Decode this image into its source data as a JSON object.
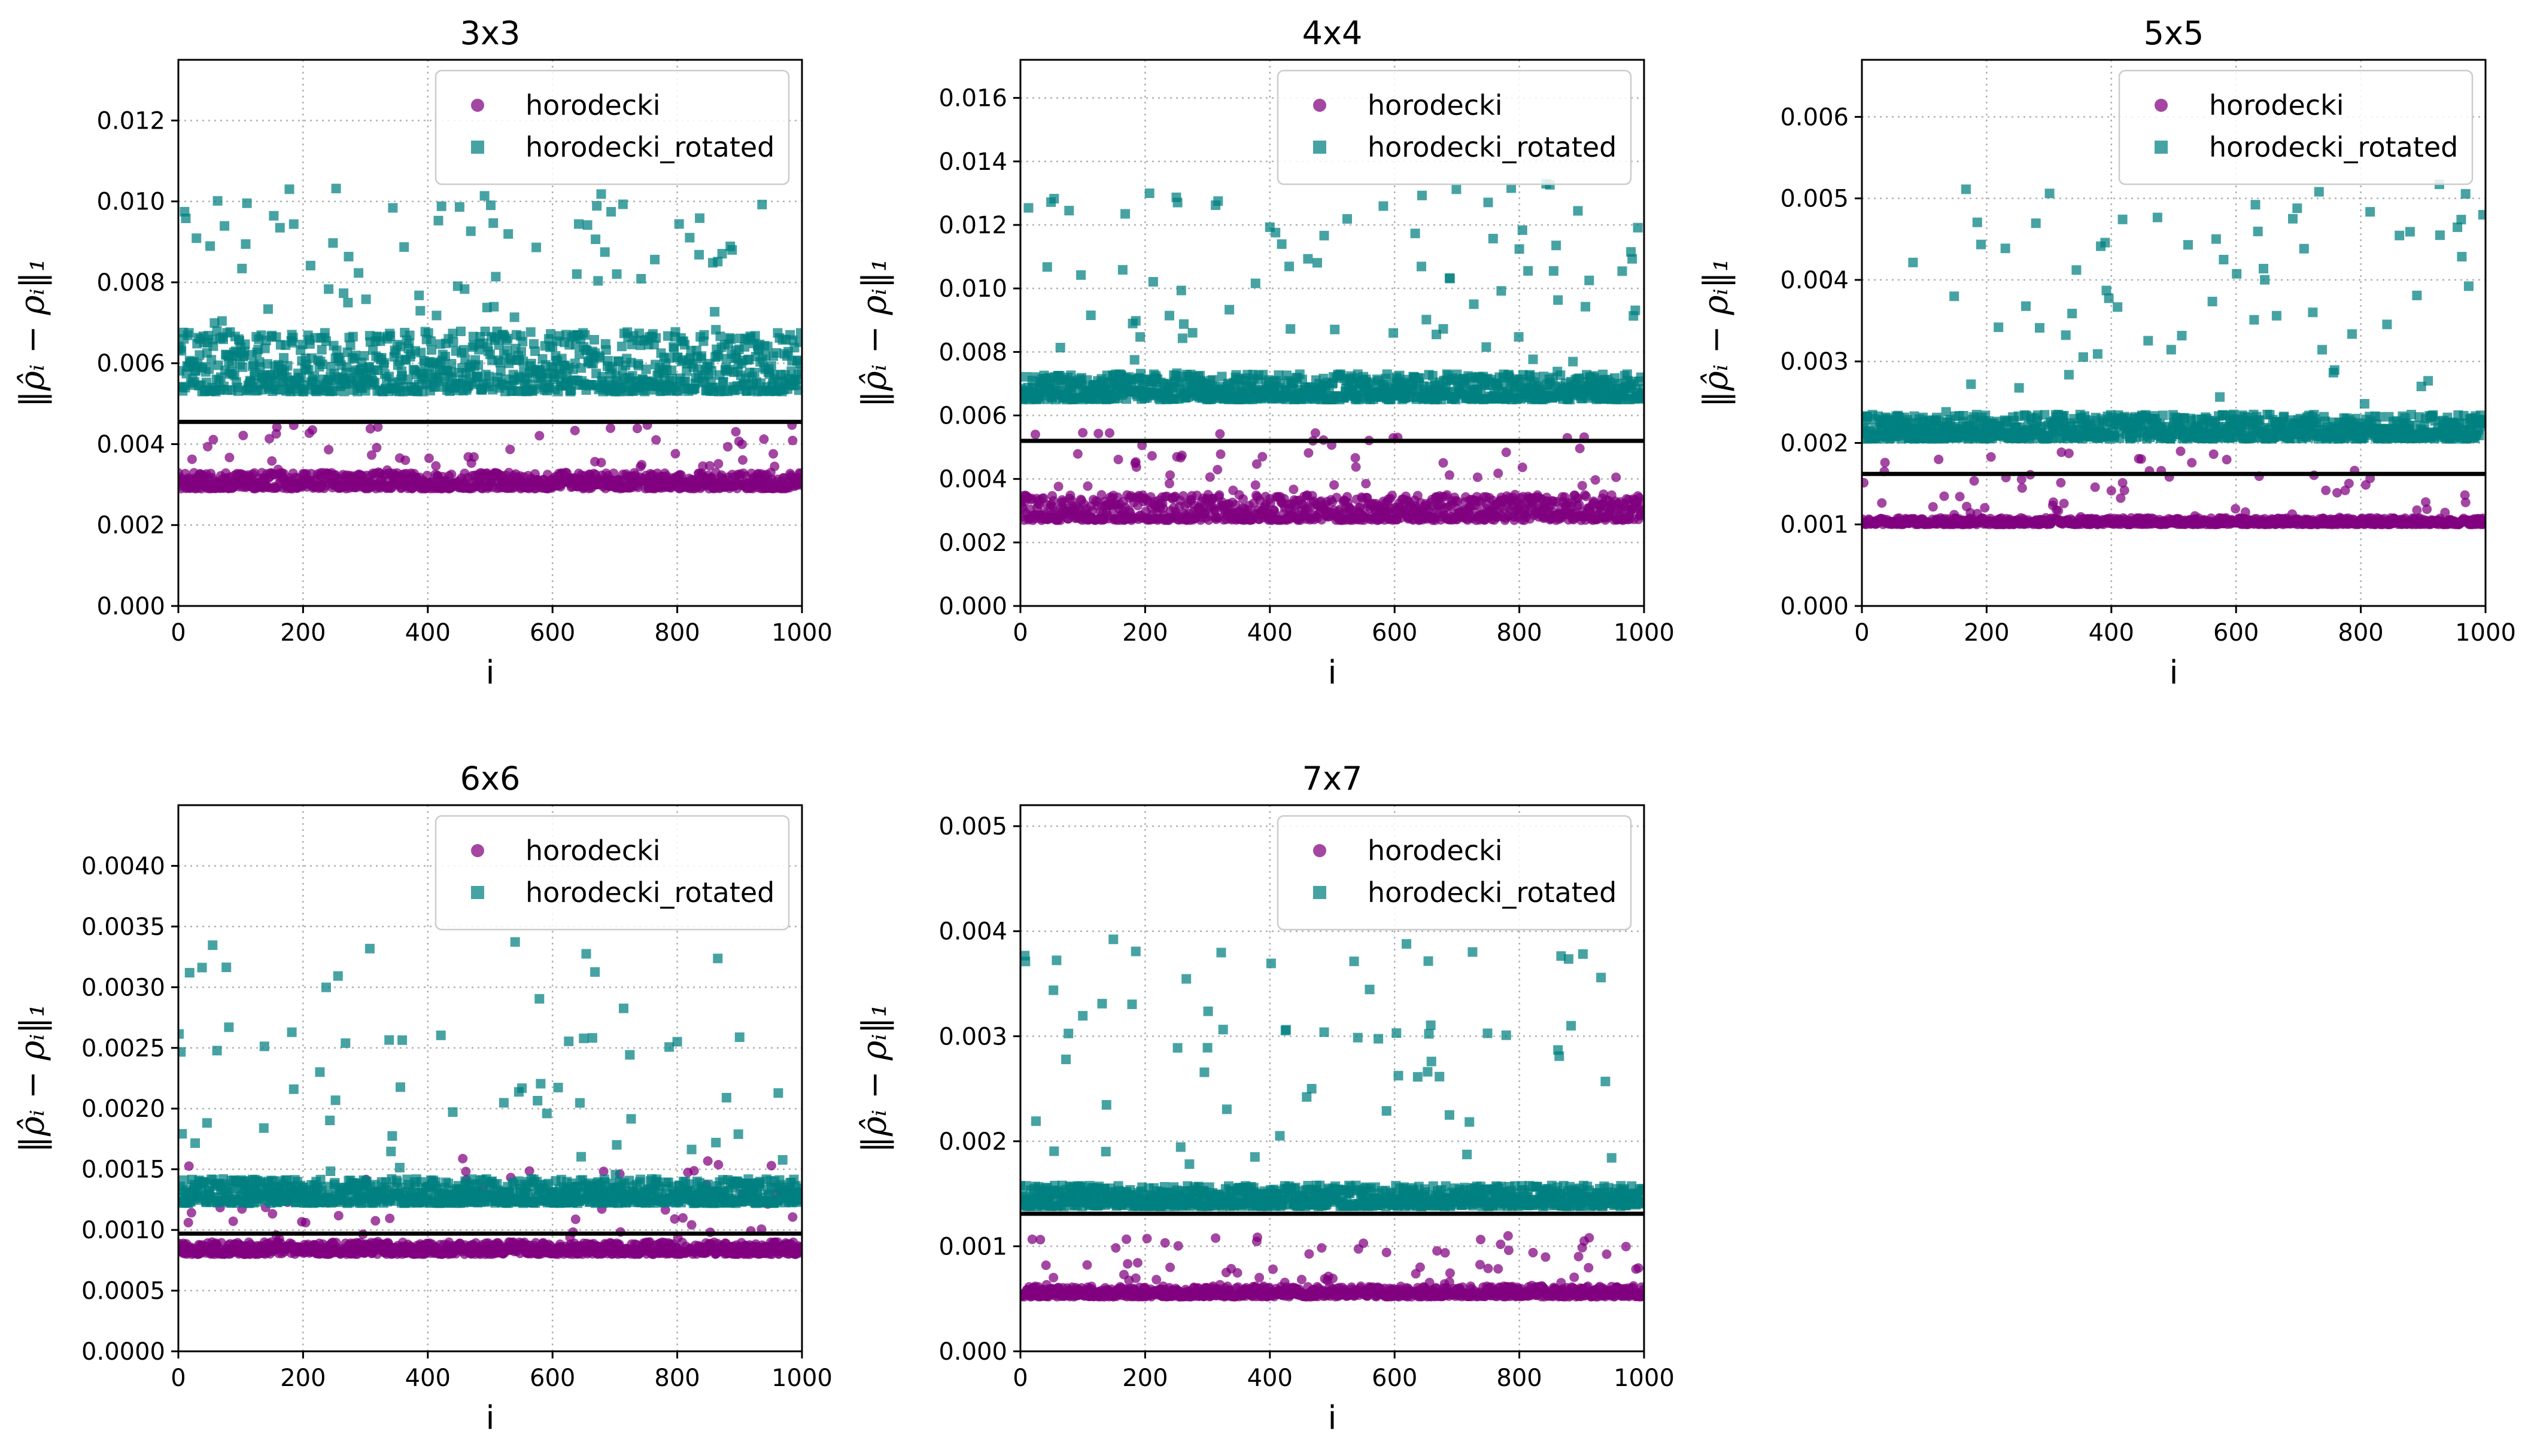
{
  "figure_title": "",
  "colors": {
    "horodecki": "#800080",
    "horodecki_rotated": "#008080",
    "threshold": "#000000"
  },
  "chart_data": [
    {
      "type": "scatter",
      "title": "3x3",
      "xlabel": "i",
      "ylabel": "‖ρ̂ᵢ − ρᵢ‖₁",
      "xlim": [
        0,
        1000
      ],
      "ylim": [
        0,
        0.0135
      ],
      "xticks": [
        0,
        200,
        400,
        600,
        800,
        1000
      ],
      "yticks": [
        0.0,
        0.002,
        0.004,
        0.006,
        0.008,
        0.01,
        0.012
      ],
      "ytick_labels": [
        "0.000",
        "0.002",
        "0.004",
        "0.006",
        "0.008",
        "0.010",
        "0.012"
      ],
      "threshold": 0.00455,
      "series": [
        {
          "name": "horodecki",
          "marker": "circle",
          "n": 1000,
          "base": 0.0029,
          "spread": 0.0004,
          "spike": 0.0045
        },
        {
          "name": "horodecki_rotated",
          "marker": "square",
          "n": 1000,
          "base": 0.0053,
          "spread": 0.0015,
          "spike": 0.0104
        }
      ],
      "legend": [
        "horodecki",
        "horodecki_rotated"
      ],
      "legend_loc": "upper-right",
      "grid": true
    },
    {
      "type": "scatter",
      "title": "4x4",
      "xlabel": "i",
      "ylabel": "‖ρ̂ᵢ − ρᵢ‖₁",
      "xlim": [
        0,
        1000
      ],
      "ylim": [
        0,
        0.0172
      ],
      "xticks": [
        0,
        200,
        400,
        600,
        800,
        1000
      ],
      "yticks": [
        0.0,
        0.002,
        0.004,
        0.006,
        0.008,
        0.01,
        0.012,
        0.014,
        0.016
      ],
      "ytick_labels": [
        "0.000",
        "0.002",
        "0.004",
        "0.006",
        "0.008",
        "0.010",
        "0.012",
        "0.014",
        "0.016"
      ],
      "threshold": 0.0052,
      "series": [
        {
          "name": "horodecki",
          "marker": "circle",
          "n": 1000,
          "base": 0.0027,
          "spread": 0.0008,
          "spike": 0.0055
        },
        {
          "name": "horodecki_rotated",
          "marker": "square",
          "n": 1000,
          "base": 0.0065,
          "spread": 0.0008,
          "spike": 0.0133
        }
      ],
      "legend": [
        "horodecki",
        "horodecki_rotated"
      ],
      "legend_loc": "upper-right",
      "grid": true
    },
    {
      "type": "scatter",
      "title": "5x5",
      "xlabel": "i",
      "ylabel": "‖ρ̂ᵢ − ρᵢ‖₁",
      "xlim": [
        0,
        1000
      ],
      "ylim": [
        0,
        0.0067
      ],
      "xticks": [
        0,
        200,
        400,
        600,
        800,
        1000
      ],
      "yticks": [
        0.0,
        0.001,
        0.002,
        0.003,
        0.004,
        0.005,
        0.006
      ],
      "ytick_labels": [
        "0.000",
        "0.001",
        "0.002",
        "0.003",
        "0.004",
        "0.005",
        "0.006"
      ],
      "threshold": 0.00162,
      "series": [
        {
          "name": "horodecki",
          "marker": "circle",
          "n": 1000,
          "base": 0.001,
          "spread": 8e-05,
          "spike": 0.0019
        },
        {
          "name": "horodecki_rotated",
          "marker": "square",
          "n": 1000,
          "base": 0.00205,
          "spread": 0.0003,
          "spike": 0.0052
        }
      ],
      "legend": [
        "horodecki",
        "horodecki_rotated"
      ],
      "legend_loc": "upper-right",
      "grid": true
    },
    {
      "type": "scatter",
      "title": "6x6",
      "xlabel": "i",
      "ylabel": "‖ρ̂ᵢ − ρᵢ‖₁",
      "xlim": [
        0,
        1000
      ],
      "ylim": [
        0,
        0.0045
      ],
      "xticks": [
        0,
        200,
        400,
        600,
        800,
        1000
      ],
      "yticks": [
        0.0,
        0.0005,
        0.001,
        0.0015,
        0.002,
        0.0025,
        0.003,
        0.0035,
        0.004
      ],
      "ytick_labels": [
        "0.0000",
        "0.0005",
        "0.0010",
        "0.0015",
        "0.0020",
        "0.0025",
        "0.0030",
        "0.0035",
        "0.0040"
      ],
      "threshold": 0.00097,
      "series": [
        {
          "name": "horodecki",
          "marker": "circle",
          "n": 1000,
          "base": 0.0008,
          "spread": 0.0001,
          "spike": 0.0016
        },
        {
          "name": "horodecki_rotated",
          "marker": "square",
          "n": 1000,
          "base": 0.00122,
          "spread": 0.0002,
          "spike": 0.0034
        }
      ],
      "legend": [
        "horodecki",
        "horodecki_rotated"
      ],
      "legend_loc": "upper-right",
      "grid": true
    },
    {
      "type": "scatter",
      "title": "7x7",
      "xlabel": "i",
      "ylabel": "‖ρ̂ᵢ − ρᵢ‖₁",
      "xlim": [
        0,
        1000
      ],
      "ylim": [
        0,
        0.0052
      ],
      "xticks": [
        0,
        200,
        400,
        600,
        800,
        1000
      ],
      "yticks": [
        0.0,
        0.001,
        0.002,
        0.003,
        0.004,
        0.005
      ],
      "ytick_labels": [
        "0.000",
        "0.001",
        "0.002",
        "0.003",
        "0.004",
        "0.005"
      ],
      "threshold": 0.00131,
      "series": [
        {
          "name": "horodecki",
          "marker": "circle",
          "n": 1000,
          "base": 0.00052,
          "spread": 0.0001,
          "spike": 0.0011
        },
        {
          "name": "horodecki_rotated",
          "marker": "square",
          "n": 1000,
          "base": 0.00138,
          "spread": 0.0002,
          "spike": 0.004
        }
      ],
      "legend": [
        "horodecki",
        "horodecki_rotated"
      ],
      "legend_loc": "upper-right",
      "grid": true
    }
  ]
}
